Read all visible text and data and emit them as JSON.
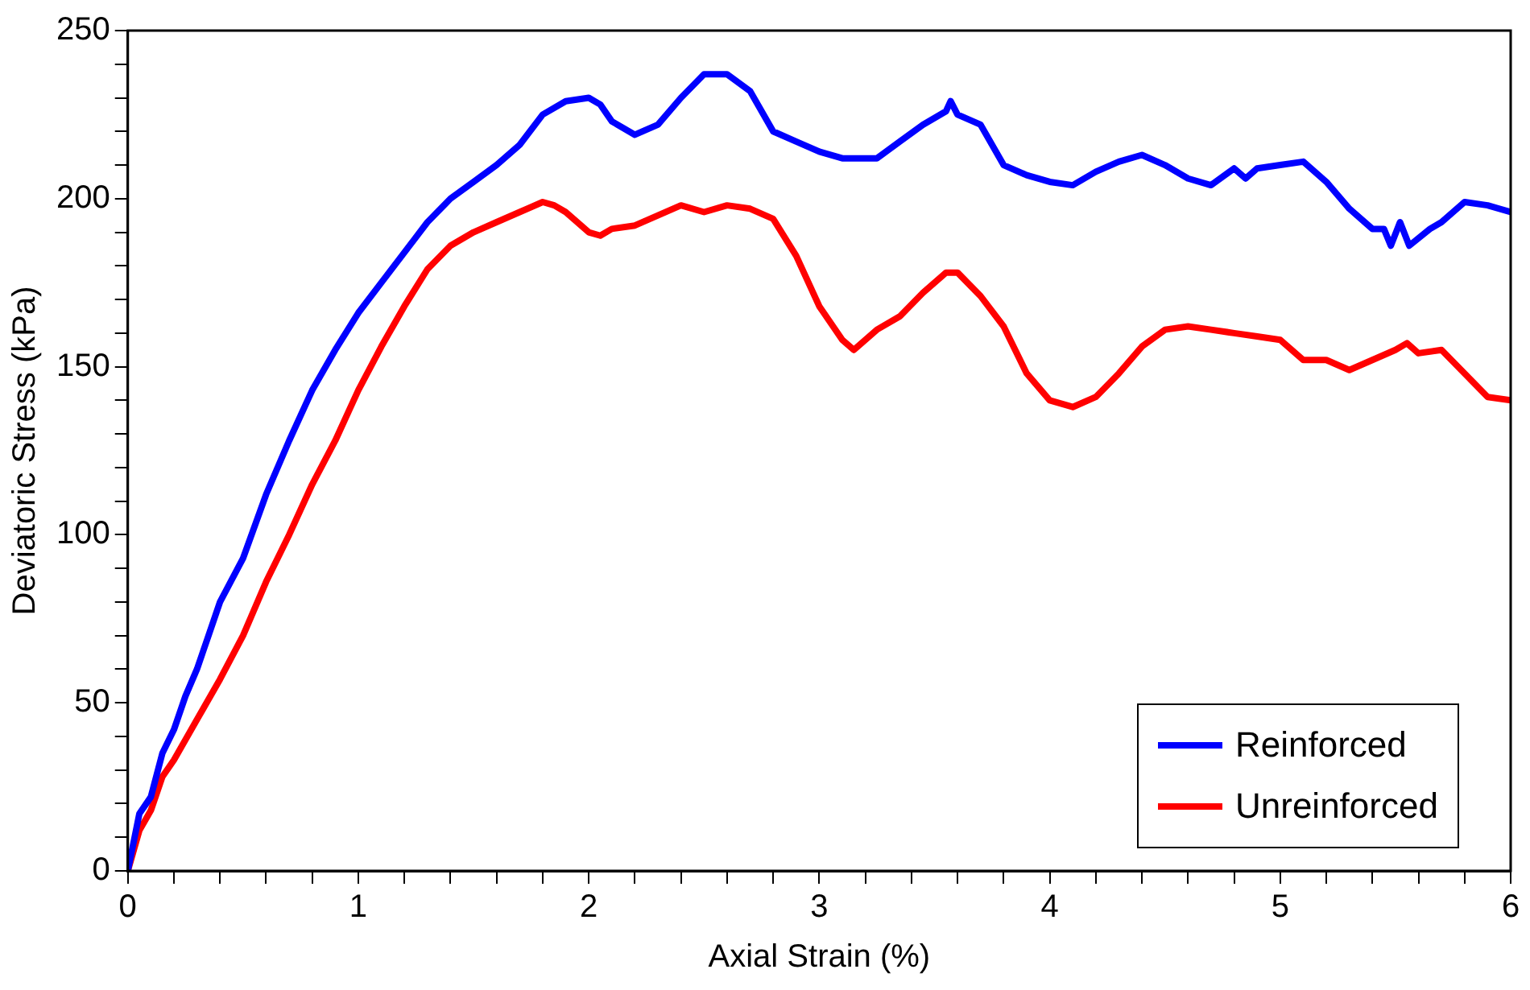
{
  "chart_data": {
    "type": "line",
    "xlabel": "Axial Strain (%)",
    "ylabel": "Deviatoric Stress (kPa)",
    "xlim": [
      0,
      6
    ],
    "ylim": [
      0,
      250
    ],
    "xticks": [
      0,
      {
        "value": 0.2,
        "label": null
      },
      {
        "value": 0.4,
        "label": null
      },
      {
        "value": 0.6,
        "label": null
      },
      {
        "value": 0.8,
        "label": null
      },
      1,
      {
        "value": 1.2,
        "label": null
      },
      {
        "value": 1.4,
        "label": null
      },
      {
        "value": 1.6,
        "label": null
      },
      {
        "value": 1.8,
        "label": null
      },
      2,
      {
        "value": 2.2,
        "label": null
      },
      {
        "value": 2.4,
        "label": null
      },
      {
        "value": 2.6,
        "label": null
      },
      {
        "value": 2.8,
        "label": null
      },
      3,
      {
        "value": 3.2,
        "label": null
      },
      {
        "value": 3.4,
        "label": null
      },
      {
        "value": 3.6,
        "label": null
      },
      {
        "value": 3.8,
        "label": null
      },
      4,
      {
        "value": 4.2,
        "label": null
      },
      {
        "value": 4.4,
        "label": null
      },
      {
        "value": 4.6,
        "label": null
      },
      {
        "value": 4.8,
        "label": null
      },
      5,
      {
        "value": 5.2,
        "label": null
      },
      {
        "value": 5.4,
        "label": null
      },
      {
        "value": 5.6,
        "label": null
      },
      {
        "value": 5.8,
        "label": null
      },
      6
    ],
    "yticks": [
      0,
      {
        "value": 10,
        "label": null
      },
      {
        "value": 20,
        "label": null
      },
      {
        "value": 30,
        "label": null
      },
      {
        "value": 40,
        "label": null
      },
      50,
      {
        "value": 60,
        "label": null
      },
      {
        "value": 70,
        "label": null
      },
      {
        "value": 80,
        "label": null
      },
      {
        "value": 90,
        "label": null
      },
      100,
      {
        "value": 110,
        "label": null
      },
      {
        "value": 120,
        "label": null
      },
      {
        "value": 130,
        "label": null
      },
      {
        "value": 140,
        "label": null
      },
      150,
      {
        "value": 160,
        "label": null
      },
      {
        "value": 170,
        "label": null
      },
      {
        "value": 180,
        "label": null
      },
      {
        "value": 190,
        "label": null
      },
      200,
      {
        "value": 210,
        "label": null
      },
      {
        "value": 220,
        "label": null
      },
      {
        "value": 230,
        "label": null
      },
      {
        "value": 240,
        "label": null
      },
      250
    ],
    "grid": false,
    "legend": "bottom right",
    "marker": "none",
    "series": [
      {
        "name": "Reinforced",
        "color": "#0000ff",
        "x": [
          0,
          0.05,
          0.1,
          0.15,
          0.2,
          0.25,
          0.3,
          0.35,
          0.4,
          0.5,
          0.6,
          0.7,
          0.8,
          0.9,
          1.0,
          1.1,
          1.2,
          1.3,
          1.4,
          1.5,
          1.6,
          1.7,
          1.8,
          1.9,
          2.0,
          2.05,
          2.1,
          2.2,
          2.3,
          2.4,
          2.5,
          2.6,
          2.7,
          2.8,
          2.9,
          3.0,
          3.1,
          3.25,
          3.35,
          3.45,
          3.55,
          3.57,
          3.6,
          3.7,
          3.8,
          3.9,
          4.0,
          4.1,
          4.2,
          4.3,
          4.4,
          4.5,
          4.6,
          4.7,
          4.8,
          4.85,
          4.9,
          5.0,
          5.1,
          5.2,
          5.3,
          5.4,
          5.45,
          5.48,
          5.52,
          5.56,
          5.65,
          5.7,
          5.8,
          5.9,
          6.0
        ],
        "values": [
          0,
          17,
          22,
          35,
          42,
          52,
          60,
          70,
          80,
          93,
          112,
          128,
          143,
          155,
          166,
          175,
          184,
          193,
          200,
          205,
          210,
          216,
          225,
          229,
          230,
          228,
          223,
          219,
          222,
          230,
          237,
          237,
          232,
          220,
          217,
          214,
          212,
          212,
          217,
          222,
          226,
          229,
          225,
          222,
          210,
          207,
          205,
          204,
          208,
          211,
          213,
          210,
          206,
          204,
          209,
          206,
          209,
          210,
          211,
          205,
          197,
          191,
          191,
          186,
          193,
          186,
          191,
          193,
          199,
          198,
          196
        ]
      },
      {
        "name": "Unreinforced",
        "color": "#ff0000",
        "x": [
          0,
          0.05,
          0.1,
          0.15,
          0.2,
          0.3,
          0.4,
          0.5,
          0.6,
          0.7,
          0.8,
          0.9,
          1.0,
          1.1,
          1.2,
          1.3,
          1.4,
          1.5,
          1.6,
          1.7,
          1.8,
          1.85,
          1.9,
          2.0,
          2.05,
          2.1,
          2.2,
          2.3,
          2.4,
          2.5,
          2.6,
          2.7,
          2.8,
          2.9,
          3.0,
          3.1,
          3.15,
          3.25,
          3.35,
          3.45,
          3.55,
          3.6,
          3.7,
          3.8,
          3.9,
          4.0,
          4.1,
          4.2,
          4.3,
          4.4,
          4.5,
          4.6,
          4.7,
          4.8,
          4.9,
          5.0,
          5.1,
          5.2,
          5.3,
          5.4,
          5.5,
          5.55,
          5.6,
          5.7,
          5.8,
          5.9,
          6.0
        ],
        "values": [
          0,
          12,
          18,
          28,
          33,
          45,
          57,
          70,
          86,
          100,
          115,
          128,
          143,
          156,
          168,
          179,
          186,
          190,
          193,
          196,
          199,
          198,
          196,
          190,
          189,
          191,
          192,
          195,
          198,
          196,
          198,
          197,
          194,
          183,
          168,
          158,
          155,
          161,
          165,
          172,
          178,
          178,
          171,
          162,
          148,
          140,
          138,
          141,
          148,
          156,
          161,
          162,
          161,
          160,
          159,
          158,
          152,
          152,
          149,
          152,
          155,
          157,
          154,
          155,
          148,
          141,
          140
        ]
      }
    ]
  }
}
